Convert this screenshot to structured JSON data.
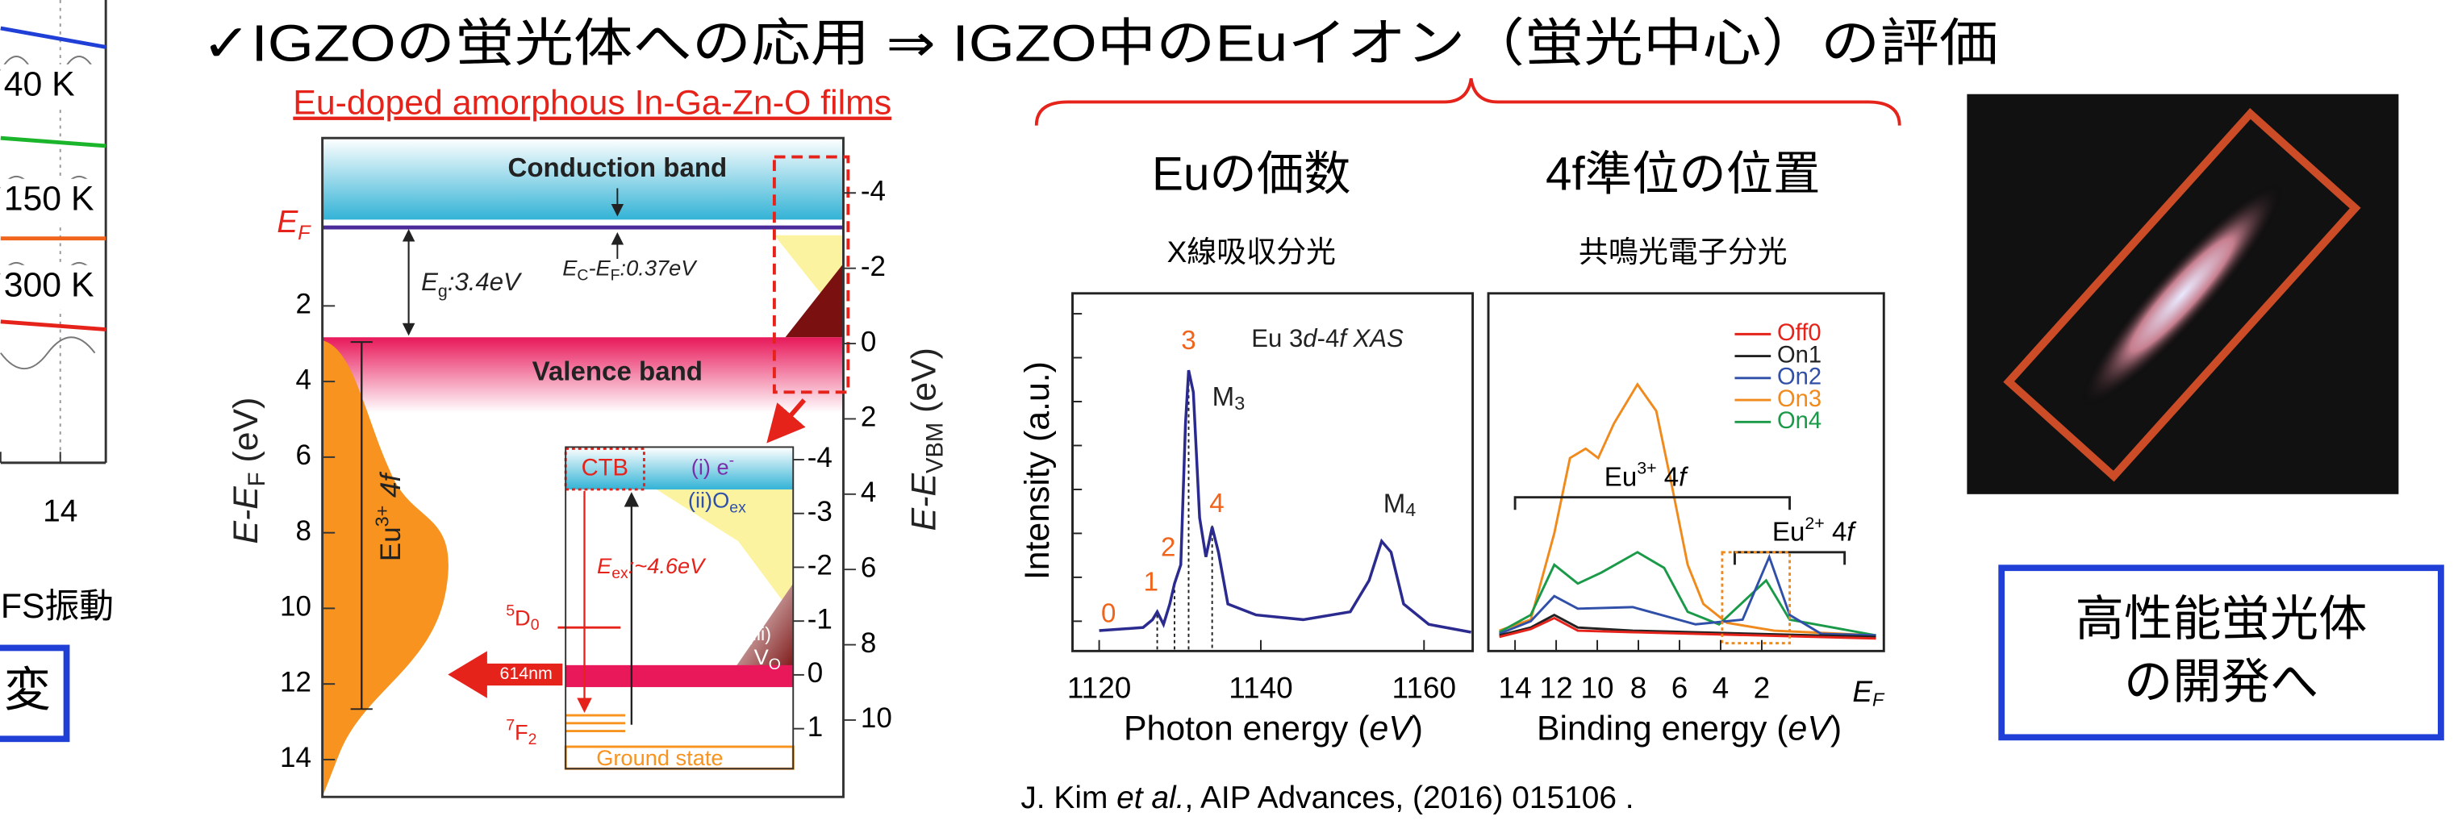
{
  "title": "✓IGZOの蛍光体への応用 ⇒ IGZO中のEuイオン（蛍光中心）の評価",
  "left_fragment": {
    "temperatures": [
      "40 K",
      "150 K",
      "300 K"
    ],
    "x_tick": "14",
    "caption": "FS振動",
    "note": "変"
  },
  "band_diagram": {
    "source": "Eu-doped amorphous In-Ga-Zn-O films",
    "conduction_band": "Conduction band",
    "valence_band": "Valence band",
    "fermi_level": [
      "E",
      "F"
    ],
    "y_axis_left": [
      "E-E",
      "F",
      " (eV)"
    ],
    "y_axis_right": [
      "E-E",
      "VBM",
      " (eV)"
    ],
    "left_ticks": [
      "2",
      "4",
      "6",
      "8",
      "10",
      "12",
      "14"
    ],
    "right_ticks": [
      "-4",
      "-2",
      "0",
      "2",
      "4",
      "6",
      "8",
      "10"
    ],
    "inset_ticks": [
      "-4",
      "-3",
      "-2",
      "-1",
      "0",
      "1"
    ],
    "gap": [
      "E",
      "g",
      ":3.4eV"
    ],
    "offset": [
      "E",
      "C",
      "-E",
      "F",
      ":0.37eV"
    ],
    "eu3_level": [
      "Eu",
      "3+",
      " 4f"
    ],
    "ctb": "CTB",
    "electron": [
      "(i) e",
      "-"
    ],
    "oxygen": [
      "(ii)O",
      "ex"
    ],
    "excitation": [
      "E",
      "ex",
      ":~4.6eV"
    ],
    "d0": [
      "5",
      "D",
      "0"
    ],
    "vacancy": [
      "(iii)",
      "V",
      "O"
    ],
    "emission": "614nm",
    "f2": [
      "7",
      "F",
      "2"
    ],
    "ground_state": "Ground state"
  },
  "xas": {
    "heading": "Euの価数",
    "method": "X線吸収分光",
    "label": [
      "Eu 3",
      "d",
      "-4",
      "f XAS"
    ],
    "peaks": [
      "0",
      "1",
      "2",
      "3",
      "4"
    ],
    "m3": [
      "M",
      "3"
    ],
    "m4": [
      "M",
      "4"
    ],
    "y_label": "Intensity (a.u.)",
    "x_ticks": [
      "1120",
      "1140",
      "1160"
    ],
    "x_label": [
      "Photon energy (",
      "eV",
      ")"
    ]
  },
  "rpes": {
    "heading": "4f準位の位置",
    "method": "共鳴光電子分光",
    "series": [
      {
        "name": "Off0",
        "color": "#e5231b"
      },
      {
        "name": "On1",
        "color": "#222222"
      },
      {
        "name": "On2",
        "color": "#2f4fa8"
      },
      {
        "name": "On3",
        "color": "#f08a1c"
      },
      {
        "name": "On4",
        "color": "#1a9a48"
      }
    ],
    "eu3": [
      "Eu",
      "3+",
      " 4",
      "f"
    ],
    "eu2": [
      "Eu",
      "2+",
      " 4",
      "f"
    ],
    "x_ticks": [
      "14",
      "12",
      "10",
      "8",
      "6",
      "4",
      "2"
    ],
    "fermi": [
      "E",
      "F"
    ],
    "x_label": [
      "Binding energy (",
      "eV",
      ")"
    ]
  },
  "citation": [
    "J. Kim ",
    "et al.",
    ", AIP Advances, (2016) 015106 ."
  ],
  "goal": [
    "高性能蛍光体",
    "の開発へ"
  ]
}
